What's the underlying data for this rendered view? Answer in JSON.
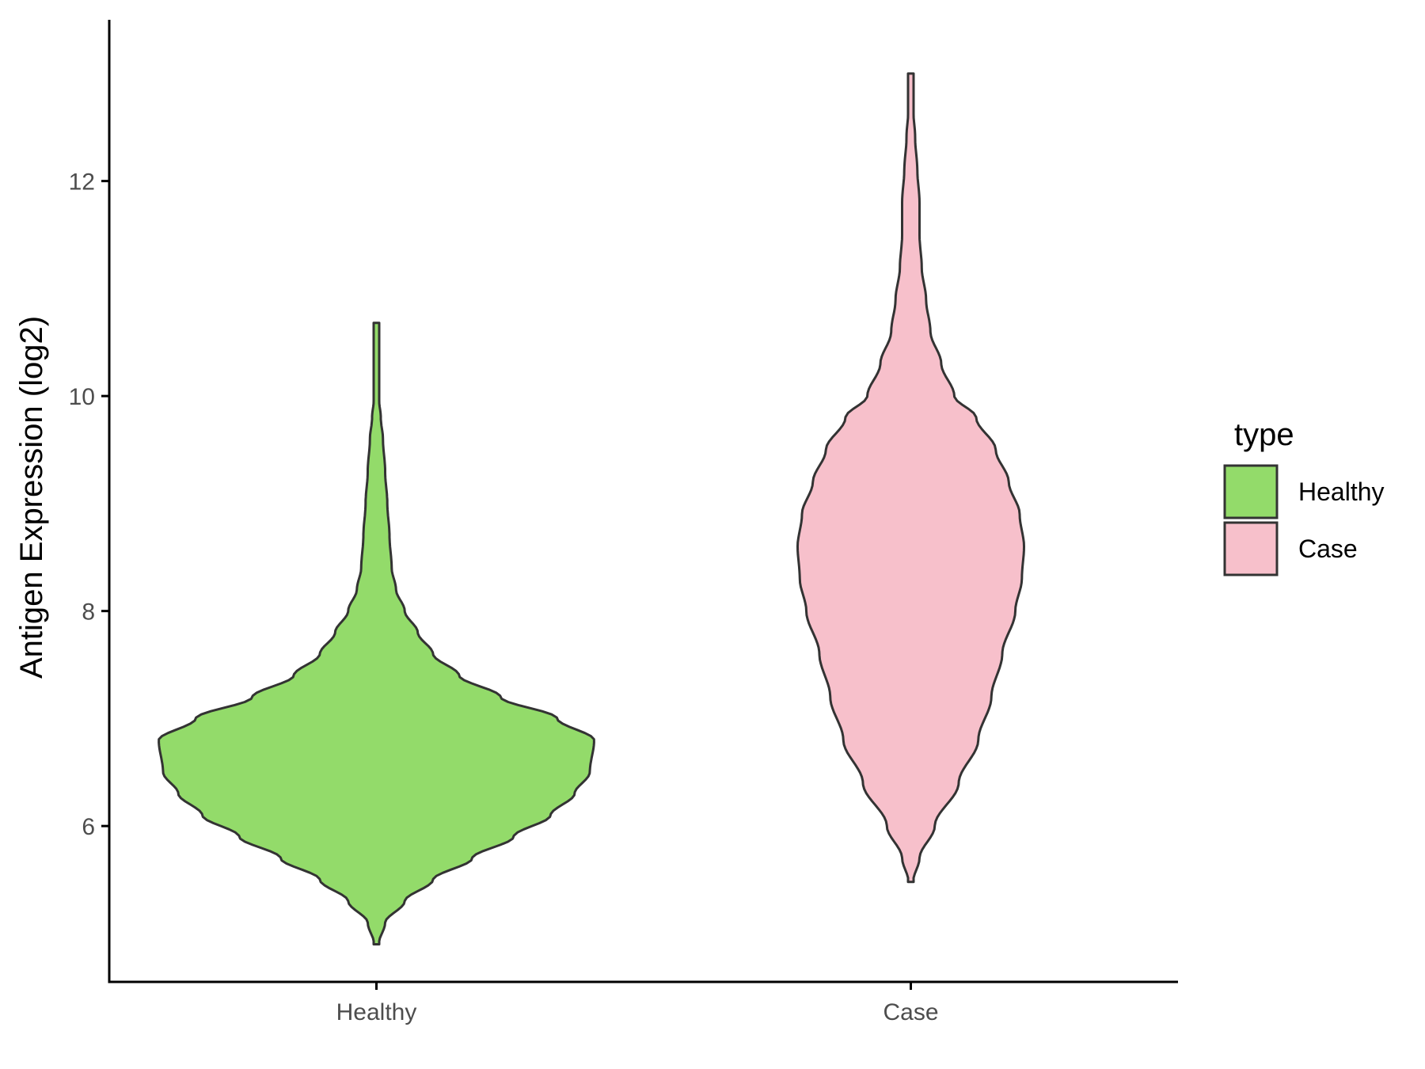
{
  "chart_data": {
    "type": "violin",
    "ylabel": "Antigen Expression (log2)",
    "ylim": [
      4.55,
      13.5
    ],
    "yticks": [
      6,
      8,
      10,
      12
    ],
    "categories": [
      "Healthy",
      "Case"
    ],
    "legend": {
      "title": "type",
      "position": "right"
    },
    "grid": false,
    "series": [
      {
        "name": "Healthy",
        "color": "#93db6a",
        "min": 4.9,
        "max": 10.68,
        "density_profile": [
          [
            4.9,
            0.01
          ],
          [
            5.1,
            0.04
          ],
          [
            5.3,
            0.13
          ],
          [
            5.5,
            0.26
          ],
          [
            5.7,
            0.44
          ],
          [
            5.9,
            0.63
          ],
          [
            6.1,
            0.8
          ],
          [
            6.3,
            0.91
          ],
          [
            6.5,
            0.98
          ],
          [
            6.8,
            1.0
          ],
          [
            7.0,
            0.83
          ],
          [
            7.2,
            0.57
          ],
          [
            7.4,
            0.38
          ],
          [
            7.6,
            0.26
          ],
          [
            7.8,
            0.19
          ],
          [
            8.0,
            0.13
          ],
          [
            8.2,
            0.09
          ],
          [
            8.4,
            0.07
          ],
          [
            8.7,
            0.06
          ],
          [
            9.0,
            0.05
          ],
          [
            9.3,
            0.04
          ],
          [
            9.6,
            0.03
          ],
          [
            9.8,
            0.02
          ],
          [
            10.0,
            0.01
          ],
          [
            10.3,
            0.01
          ],
          [
            10.68,
            0.01
          ]
        ]
      },
      {
        "name": "Case",
        "color": "#f7c0cb",
        "min": 5.48,
        "max": 13.0,
        "density_profile": [
          [
            5.48,
            0.01
          ],
          [
            5.7,
            0.04
          ],
          [
            6.0,
            0.11
          ],
          [
            6.4,
            0.22
          ],
          [
            6.8,
            0.31
          ],
          [
            7.2,
            0.37
          ],
          [
            7.6,
            0.42
          ],
          [
            8.0,
            0.48
          ],
          [
            8.3,
            0.51
          ],
          [
            8.6,
            0.52
          ],
          [
            8.9,
            0.5
          ],
          [
            9.2,
            0.45
          ],
          [
            9.5,
            0.39
          ],
          [
            9.8,
            0.3
          ],
          [
            10.0,
            0.2
          ],
          [
            10.3,
            0.14
          ],
          [
            10.6,
            0.09
          ],
          [
            10.9,
            0.07
          ],
          [
            11.2,
            0.05
          ],
          [
            11.5,
            0.04
          ],
          [
            11.8,
            0.04
          ],
          [
            12.1,
            0.03
          ],
          [
            12.4,
            0.02
          ],
          [
            12.7,
            0.01
          ],
          [
            13.0,
            0.005
          ]
        ]
      }
    ]
  }
}
